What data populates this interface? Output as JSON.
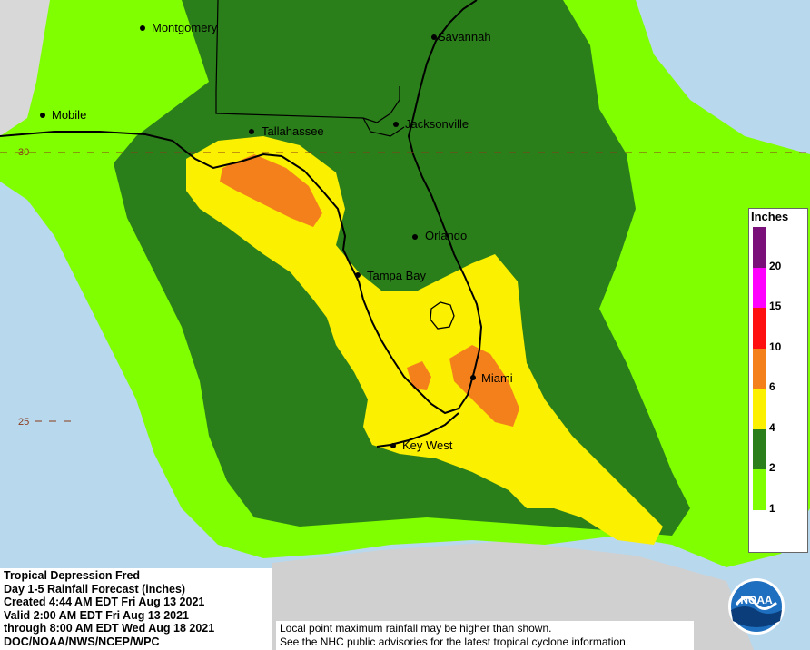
{
  "info": {
    "line1": "Tropical Depression Fred",
    "line2": "Day 1-5 Rainfall Forecast (inches)",
    "line3": "Created 4:44 AM EDT Fri Aug 13 2021",
    "line4": "Valid 2:00 AM EDT Fri Aug 13 2021",
    "line5": "through 8:00 AM EDT Wed Aug 18 2021",
    "line6": "DOC/NOAA/NWS/NCEP/WPC"
  },
  "disclaimer": {
    "line1": "Local point maximum rainfall may be higher than shown.",
    "line2": "See the NHC public advisories for the latest tropical cyclone information."
  },
  "legend": {
    "title": "Inches",
    "bands": [
      {
        "color": "#7a0f7a"
      },
      {
        "color": "#ff00ff"
      },
      {
        "color": "#ff1010"
      },
      {
        "color": "#f4801c"
      },
      {
        "color": "#fbf000"
      },
      {
        "color": "#2b7f1a"
      },
      {
        "color": "#80ff00"
      },
      {
        "color": "#ffffff"
      }
    ],
    "ticks": [
      "20",
      "15",
      "10",
      "6",
      "4",
      "2",
      "1"
    ]
  },
  "cities": {
    "montgomery": "Montgomery",
    "savannah": "Savannah",
    "mobile": "Mobile",
    "tallahassee": "Tallahassee",
    "jacksonville": "Jacksonville",
    "orlando": "Orlando",
    "tampa_bay": "Tampa Bay",
    "miami": "Miami",
    "key_west": "Key West"
  },
  "grid": {
    "lat30": "30",
    "lat25": "25"
  },
  "logo": {
    "text": "NOAA"
  },
  "colors": {
    "ocean": "#b8d8ee",
    "light_green": "#80ff00",
    "dark_green": "#2b7f1a",
    "yellow": "#fbf000",
    "orange": "#f4801c"
  }
}
